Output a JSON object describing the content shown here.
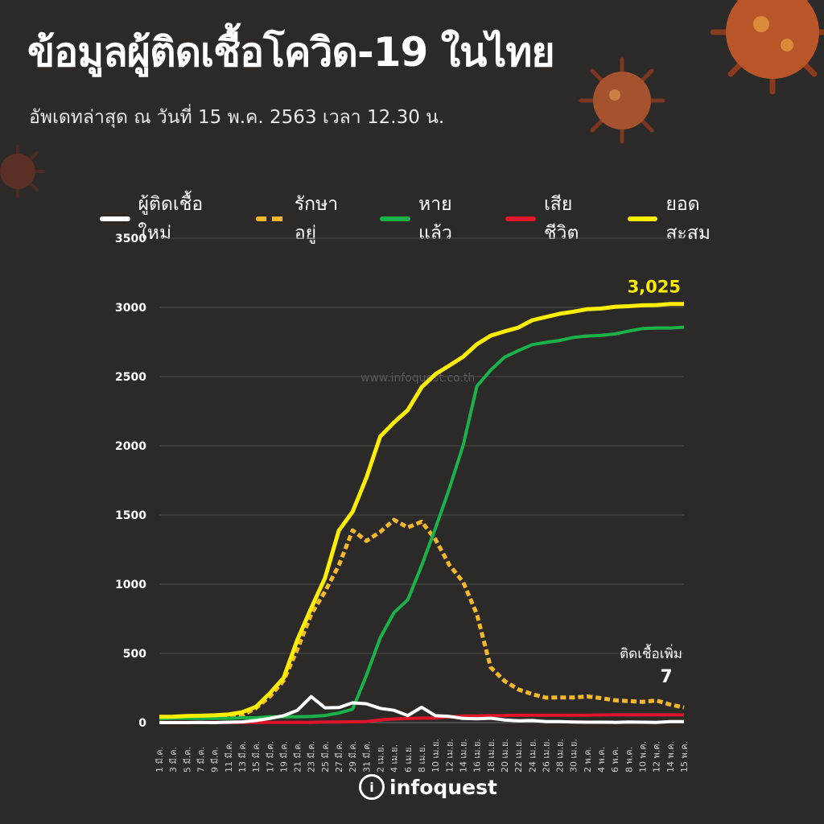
{
  "title": "ข้อมูลผู้ติดเชื้อโควิด-19 ในไทย",
  "subtitle": "อัพเดทล่าสุด ณ วันที่  15 พ.ค. 2563 เวลา 12.30 น.",
  "watermark": "www.infoquest.co.th",
  "brand": "infoquest",
  "colors": {
    "background": "#2b2a29",
    "new_cases": "#ffffff",
    "active": "#f5b82a",
    "recovered": "#19b34a",
    "deaths": "#e0142a",
    "cumulative": "#ffee00"
  },
  "chart_data": {
    "type": "line",
    "ylim": [
      0,
      3500
    ],
    "yticks": [
      "0",
      "500",
      "1000",
      "1500",
      "2000",
      "2500",
      "3000",
      "3500"
    ],
    "grid": true,
    "legend_placement": "top",
    "x": [
      "1 มี.ค.",
      "3 มี.ค.",
      "5 มี.ค.",
      "7 มี.ค.",
      "9 มี.ค.",
      "11 มี.ค.",
      "13 มี.ค.",
      "15 มี.ค.",
      "17 มี.ค.",
      "19 มี.ค.",
      "21 มี.ค.",
      "23 มี.ค.",
      "25 มี.ค.",
      "27 มี.ค.",
      "29 มี.ค.",
      "31 มี.ค.",
      "2 เม.ย.",
      "4 เม.ย.",
      "6 เม.ย.",
      "8 เม.ย.",
      "10 เม.ย.",
      "12 เม.ย.",
      "14 เม.ย.",
      "16 เม.ย.",
      "18 เม.ย.",
      "20 เม.ย.",
      "22 เม.ย.",
      "24 เม.ย.",
      "26 เม.ย.",
      "28 เม.ย.",
      "30 เม.ย.",
      "2 พ.ค.",
      "4 พ.ค.",
      "6 พ.ค.",
      "8 พ.ค.",
      "10 พ.ค.",
      "12 พ.ค.",
      "14 พ.ค.",
      "15 พ.ค."
    ],
    "series": [
      {
        "name": "ผู้ติดเชื้อใหม่",
        "style": "solid",
        "values": [
          0,
          0,
          0,
          1,
          0,
          3,
          5,
          15,
          30,
          50,
          89,
          188,
          107,
          109,
          143,
          136,
          103,
          89,
          51,
          111,
          50,
          45,
          30,
          28,
          32,
          19,
          13,
          15,
          7,
          7,
          4,
          3,
          3,
          2,
          4,
          3,
          2,
          7,
          7
        ]
      },
      {
        "name": "รักษาอยู่",
        "style": "dashed",
        "values": [
          41,
          40,
          39,
          41,
          46,
          49,
          52,
          106,
          188,
          303,
          530,
          782,
          947,
          1136,
          1389,
          1313,
          1378,
          1465,
          1410,
          1452,
          1323,
          1140,
          1016,
          784,
          399,
          301,
          240,
          206,
          180,
          182,
          182,
          189,
          177,
          161,
          155,
          150,
          160,
          130,
          110
        ]
      },
      {
        "name": "หายแล้ว",
        "style": "solid",
        "values": [
          28,
          31,
          31,
          31,
          31,
          31,
          35,
          35,
          42,
          42,
          42,
          44,
          52,
          69,
          97,
          342,
          612,
          795,
          888,
          1135,
          1405,
          1689,
          2002,
          2430,
          2547,
          2640,
          2687,
          2731,
          2747,
          2761,
          2783,
          2793,
          2798,
          2808,
          2829,
          2847,
          2851,
          2851,
          2857
        ]
      },
      {
        "name": "เสียชีวิต",
        "style": "solid",
        "values": [
          1,
          1,
          1,
          1,
          1,
          1,
          1,
          1,
          1,
          1,
          1,
          1,
          4,
          4,
          6,
          7,
          20,
          26,
          30,
          32,
          33,
          41,
          47,
          48,
          51,
          51,
          54,
          54,
          54,
          54,
          54,
          54,
          55,
          56,
          56,
          56,
          56,
          56,
          56
        ]
      },
      {
        "name": "ยอดสะสม",
        "style": "solid",
        "values": [
          42,
          43,
          48,
          50,
          53,
          59,
          75,
          114,
          212,
          322,
          599,
          827,
          1045,
          1388,
          1524,
          1771,
          2067,
          2169,
          2258,
          2423,
          2518,
          2579,
          2643,
          2733,
          2796,
          2826,
          2854,
          2907,
          2931,
          2954,
          2969,
          2987,
          2992,
          3004,
          3009,
          3015,
          3017,
          3025,
          3025
        ]
      }
    ],
    "annotations": {
      "cumulative_label": "3,025",
      "new_label": "ติดเชื้อเพิ่ม",
      "new_value": "7"
    }
  }
}
